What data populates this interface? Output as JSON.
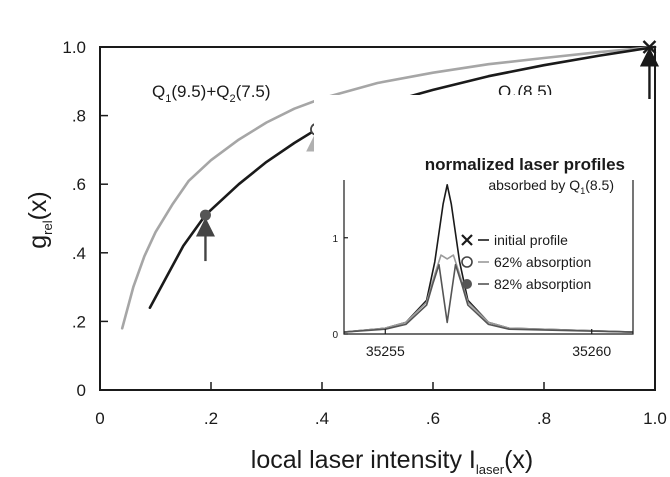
{
  "chart_data": [
    {
      "type": "line",
      "xlabel": {
        "main": "local laser intensity I",
        "sub": "laser",
        "tail": "(x)"
      },
      "ylabel": {
        "main": "g",
        "sub": "rel",
        "tail": "(x)"
      },
      "xlim": [
        0,
        1.0
      ],
      "ylim": [
        0,
        1.0
      ],
      "x_ticks": [
        {
          "v": 0,
          "label": "0"
        },
        {
          "v": 0.2,
          "label": ".2"
        },
        {
          "v": 0.4,
          "label": ".4"
        },
        {
          "v": 0.6,
          "label": ".6"
        },
        {
          "v": 0.8,
          "label": ".8"
        },
        {
          "v": 1.0,
          "label": "1.0"
        }
      ],
      "y_ticks": [
        {
          "v": 0,
          "label": "0"
        },
        {
          "v": 0.2,
          "label": ".2"
        },
        {
          "v": 0.4,
          "label": ".4"
        },
        {
          "v": 0.6,
          "label": ".6"
        },
        {
          "v": 0.8,
          "label": ".8"
        },
        {
          "v": 1.0,
          "label": "1.0"
        }
      ],
      "grid": false,
      "reference_line_y": 1.0,
      "series": [
        {
          "name": "Q1(9.5)+Q2(7.5)",
          "label": {
            "q1": "Q",
            "s1": "1",
            "m1": "(9.5)+Q",
            "s2": "2",
            "m2": "(7.5)"
          },
          "color": "#a6a6a6",
          "x": [
            0.04,
            0.06,
            0.08,
            0.1,
            0.13,
            0.16,
            0.2,
            0.25,
            0.3,
            0.35,
            0.4,
            0.5,
            0.6,
            0.7,
            0.8,
            0.9,
            1.0
          ],
          "y": [
            0.18,
            0.3,
            0.39,
            0.46,
            0.54,
            0.61,
            0.67,
            0.73,
            0.78,
            0.82,
            0.85,
            0.895,
            0.925,
            0.95,
            0.968,
            0.985,
            1.0
          ]
        },
        {
          "name": "Q1(8.5)",
          "label": {
            "q1": "Q",
            "s1": "1",
            "m1": "(8.5)"
          },
          "color": "#1a1a1a",
          "x": [
            0.09,
            0.12,
            0.15,
            0.19,
            0.25,
            0.3,
            0.35,
            0.39,
            0.45,
            0.5,
            0.6,
            0.7,
            0.8,
            0.9,
            1.0
          ],
          "y": [
            0.24,
            0.33,
            0.42,
            0.51,
            0.6,
            0.665,
            0.72,
            0.76,
            0.8,
            0.83,
            0.875,
            0.915,
            0.947,
            0.975,
            1.0
          ]
        }
      ],
      "markers": [
        {
          "kind": "filled",
          "x": 0.19,
          "y": 0.51,
          "arrow_color": "#444444"
        },
        {
          "kind": "open",
          "x": 0.39,
          "y": 0.76,
          "arrow_color": "#b0b0b0"
        },
        {
          "kind": "cross",
          "x": 0.99,
          "y": 1.0,
          "arrow_color": "#1a1a1a"
        }
      ]
    },
    {
      "type": "line",
      "title": "normalized  laser profiles",
      "subtitle": {
        "main": "absorbed by Q",
        "sub": "1",
        "tail": "(8.5)"
      },
      "xlim": [
        35254,
        35261
      ],
      "ylim": [
        0,
        1.6
      ],
      "x_ticks": [
        {
          "v": 35255,
          "label": "35255"
        },
        {
          "v": 35260,
          "label": "35260"
        }
      ],
      "y_ticks": [
        {
          "v": 0,
          "label": "0"
        },
        {
          "v": 1,
          "label": "1"
        }
      ],
      "series": [
        {
          "name": "initial profile",
          "legend_symbol": "×",
          "color": "#1a1a1a",
          "x": [
            35254,
            35255,
            35255.5,
            35256,
            35256.2,
            35256.4,
            35256.5,
            35256.6,
            35256.8,
            35257,
            35257.5,
            35258,
            35261
          ],
          "y": [
            0.02,
            0.06,
            0.12,
            0.35,
            0.75,
            1.35,
            1.55,
            1.35,
            0.75,
            0.35,
            0.12,
            0.06,
            0.02
          ]
        },
        {
          "name": "62% absorption",
          "legend_symbol": "○",
          "color": "#9a9a9a",
          "x": [
            35254,
            35255,
            35255.5,
            35256,
            35256.2,
            35256.35,
            35256.5,
            35256.65,
            35256.8,
            35257,
            35257.5,
            35258,
            35261
          ],
          "y": [
            0.02,
            0.06,
            0.12,
            0.33,
            0.62,
            0.82,
            0.78,
            0.82,
            0.62,
            0.33,
            0.12,
            0.06,
            0.02
          ]
        },
        {
          "name": "82% absorption",
          "legend_symbol": "●",
          "color": "#555555",
          "x": [
            35254,
            35255,
            35255.5,
            35256,
            35256.15,
            35256.3,
            35256.5,
            35256.7,
            35256.85,
            35257,
            35257.5,
            35258,
            35261
          ],
          "y": [
            0.02,
            0.05,
            0.1,
            0.3,
            0.52,
            0.72,
            0.12,
            0.72,
            0.52,
            0.3,
            0.1,
            0.05,
            0.02
          ]
        }
      ]
    }
  ]
}
